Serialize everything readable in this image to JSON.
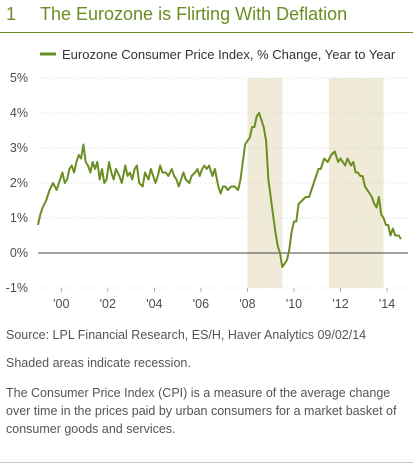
{
  "figure": {
    "number": "1",
    "title": "The Eurozone is Flirting With Deflation"
  },
  "notes": {
    "source": "Source: LPL Financial Research, ES/H, Haver Analytics 09/02/14",
    "shading": "Shaded areas indicate recession.",
    "definition": "The Consumer Price Index (CPI) is a measure of the average change over time in the prices paid by urban consumers for a market basket of consumer goods and services."
  },
  "colors": {
    "line": "#6b8e23",
    "shade": "#f0ebd8",
    "title": "#6b8e23"
  },
  "chart_data": {
    "type": "line",
    "legend_position": "top-left",
    "series": [
      {
        "name": "Eurozone Consumer Price Index, % Change, Year to Year",
        "x": [
          1999.0,
          1999.1,
          1999.2,
          1999.35,
          1999.5,
          1999.65,
          1999.8,
          1999.95,
          2000.05,
          2000.15,
          2000.25,
          2000.35,
          2000.45,
          2000.55,
          2000.65,
          2000.75,
          2000.85,
          2000.95,
          2001.05,
          2001.15,
          2001.25,
          2001.35,
          2001.45,
          2001.55,
          2001.65,
          2001.75,
          2001.85,
          2001.95,
          2002.05,
          2002.15,
          2002.25,
          2002.35,
          2002.5,
          2002.6,
          2002.75,
          2002.85,
          2002.95,
          2003.05,
          2003.15,
          2003.25,
          2003.35,
          2003.5,
          2003.6,
          2003.75,
          2003.85,
          2003.95,
          2004.05,
          2004.15,
          2004.25,
          2004.35,
          2004.5,
          2004.6,
          2004.75,
          2004.85,
          2004.95,
          2005.05,
          2005.15,
          2005.25,
          2005.35,
          2005.5,
          2005.6,
          2005.75,
          2005.85,
          2005.95,
          2006.05,
          2006.15,
          2006.25,
          2006.35,
          2006.5,
          2006.6,
          2006.75,
          2006.85,
          2006.95,
          2007.05,
          2007.15,
          2007.3,
          2007.45,
          2007.6,
          2007.7,
          2007.8,
          2007.9,
          2008.0,
          2008.1,
          2008.2,
          2008.3,
          2008.4,
          2008.5,
          2008.6,
          2008.7,
          2008.8,
          2008.9,
          2009.0,
          2009.1,
          2009.2,
          2009.3,
          2009.4,
          2009.5,
          2009.6,
          2009.7,
          2009.8,
          2009.9,
          2010.0,
          2010.1,
          2010.2,
          2010.35,
          2010.5,
          2010.65,
          2010.8,
          2010.95,
          2011.05,
          2011.15,
          2011.3,
          2011.45,
          2011.6,
          2011.75,
          2011.9,
          2012.0,
          2012.1,
          2012.2,
          2012.3,
          2012.45,
          2012.55,
          2012.65,
          2012.75,
          2012.85,
          2012.95,
          2013.05,
          2013.15,
          2013.25,
          2013.35,
          2013.45,
          2013.55,
          2013.65,
          2013.75,
          2013.85,
          2013.95,
          2014.05,
          2014.15,
          2014.25,
          2014.35,
          2014.5,
          2014.6
        ],
        "y": [
          0.8,
          1.1,
          1.3,
          1.5,
          1.8,
          2.0,
          1.8,
          2.1,
          2.3,
          2.0,
          2.1,
          2.4,
          2.5,
          2.3,
          2.6,
          2.8,
          2.7,
          3.1,
          2.6,
          2.5,
          2.3,
          2.6,
          2.4,
          2.6,
          2.1,
          2.4,
          2.0,
          2.1,
          2.6,
          2.3,
          2.1,
          2.4,
          2.2,
          2.0,
          2.5,
          2.2,
          2.3,
          2.1,
          2.4,
          2.5,
          2.0,
          1.9,
          2.3,
          2.1,
          2.4,
          2.2,
          2.0,
          2.2,
          2.5,
          2.3,
          2.3,
          2.2,
          2.4,
          2.2,
          2.1,
          1.9,
          2.1,
          2.3,
          2.1,
          2.0,
          2.2,
          2.3,
          2.4,
          2.2,
          2.4,
          2.5,
          2.4,
          2.5,
          2.2,
          2.4,
          1.9,
          1.7,
          1.9,
          1.9,
          1.8,
          1.9,
          1.9,
          1.8,
          2.1,
          2.6,
          3.1,
          3.2,
          3.3,
          3.6,
          3.6,
          3.9,
          4.0,
          3.8,
          3.6,
          3.2,
          2.1,
          1.6,
          1.1,
          0.6,
          0.2,
          0.0,
          -0.4,
          -0.3,
          -0.2,
          0.1,
          0.6,
          0.9,
          0.9,
          1.4,
          1.5,
          1.6,
          1.6,
          1.9,
          2.2,
          2.4,
          2.4,
          2.7,
          2.6,
          2.8,
          2.9,
          2.6,
          2.7,
          2.6,
          2.5,
          2.7,
          2.5,
          2.6,
          2.3,
          2.3,
          2.2,
          2.2,
          1.9,
          1.8,
          1.7,
          1.6,
          1.4,
          1.3,
          1.6,
          1.1,
          1.0,
          0.8,
          0.8,
          0.5,
          0.7,
          0.5,
          0.5,
          0.4
        ]
      }
    ],
    "recessions": [
      [
        2008.0,
        2009.5
      ],
      [
        2011.5,
        2013.85
      ]
    ],
    "ylim": [
      -1,
      5
    ],
    "y_ticks": [
      5,
      4,
      3,
      2,
      1,
      0,
      -1
    ],
    "y_tick_labels": [
      "5%",
      "4%",
      "3%",
      "2%",
      "1%",
      "0%",
      "-1%"
    ],
    "xlim": [
      1999.0,
      2014.9
    ],
    "x_ticks": [
      2000,
      2002,
      2004,
      2006,
      2008,
      2010,
      2012,
      2014
    ],
    "x_tick_labels": [
      "'00",
      "'02",
      "'04",
      "'06",
      "'08",
      "'10",
      "'12",
      "'14"
    ],
    "reference_line_y": 0,
    "grid": true
  }
}
